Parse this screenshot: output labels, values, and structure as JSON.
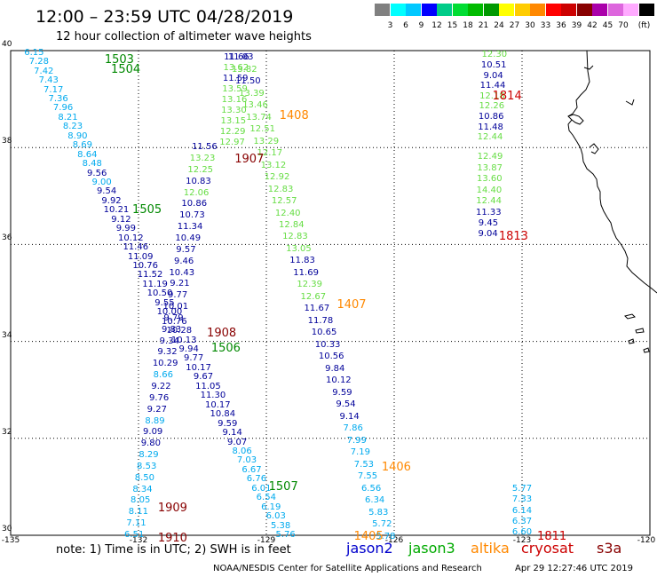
{
  "header": {
    "title": "12:00 – 23:59 UTC 04/28/2019",
    "subtitle": "12 hour collection of altimeter wave heights"
  },
  "colorbar": {
    "colors": [
      "#808080",
      "#00ffff",
      "#00c8ff",
      "#0000ff",
      "#00cc88",
      "#00dd33",
      "#00bb00",
      "#009900",
      "#ffff00",
      "#ffcc00",
      "#ff8800",
      "#ff0000",
      "#cc0000",
      "#880000",
      "#aa00aa",
      "#dd66dd",
      "#ffaaff",
      "#000000"
    ],
    "ticks": [
      "3",
      "6",
      "9",
      "12",
      "15",
      "18",
      "21",
      "24",
      "27",
      "30",
      "33",
      "36",
      "39",
      "42",
      "45",
      "70",
      "(ft)"
    ]
  },
  "axes": {
    "lat_labels": [
      "40",
      "38",
      "36",
      "34",
      "32",
      "30"
    ],
    "lon_labels": [
      "-135",
      "-132",
      "-129",
      "-126",
      "-123",
      "-120"
    ]
  },
  "track_colors": {
    "jason2": "#000099",
    "jason3": "#008800",
    "altika": "#ff8800",
    "cryosat": "#cc0000",
    "s3a": "#880000"
  },
  "track_labels": [
    {
      "text": "1503",
      "color": "#008800",
      "lon": -132.45,
      "lat": 39.8
    },
    {
      "text": "1504",
      "color": "#008800",
      "lon": -132.3,
      "lat": 39.6
    },
    {
      "text": "1505",
      "color": "#008800",
      "lon": -131.8,
      "lat": 36.7
    },
    {
      "text": "1506",
      "color": "#008800",
      "lon": -129.95,
      "lat": 33.85
    },
    {
      "text": "1507",
      "color": "#008800",
      "lon": -128.6,
      "lat": 30.98
    },
    {
      "text": "1408",
      "color": "#ff8800",
      "lon": -128.35,
      "lat": 38.65
    },
    {
      "text": "1407",
      "color": "#ff8800",
      "lon": -127.0,
      "lat": 34.75
    },
    {
      "text": "1406",
      "color": "#ff8800",
      "lon": -125.95,
      "lat": 31.4
    },
    {
      "text": "1405",
      "color": "#ff8800",
      "lon": -126.6,
      "lat": 29.97
    },
    {
      "text": "1907",
      "color": "#880000",
      "lon": -129.4,
      "lat": 37.74
    },
    {
      "text": "1908",
      "color": "#880000",
      "lon": -130.05,
      "lat": 34.15
    },
    {
      "text": "1909",
      "color": "#880000",
      "lon": -131.2,
      "lat": 30.55
    },
    {
      "text": "1910",
      "color": "#880000",
      "lon": -131.2,
      "lat": 29.93
    },
    {
      "text": "1814",
      "color": "#cc0000",
      "lon": -123.35,
      "lat": 39.05
    },
    {
      "text": "1813",
      "color": "#cc0000",
      "lon": -123.2,
      "lat": 36.15
    },
    {
      "text": "1811",
      "color": "#cc0000",
      "lon": -122.3,
      "lat": 29.97
    }
  ],
  "tracks": [
    {
      "id": "track-1503-1505-1507",
      "start": [
        -134.45,
        39.95
      ],
      "end": [
        -128.55,
        30.0
      ],
      "values": [
        {
          "v": "6.15",
          "c": "#00aaee"
        },
        {
          "v": "7.28",
          "c": "#00aaee"
        },
        {
          "v": "7.42",
          "c": "#00aaee"
        },
        {
          "v": "7.43",
          "c": "#00aaee"
        },
        {
          "v": "7.17",
          "c": "#00aaee"
        },
        {
          "v": "7.36",
          "c": "#00aaee"
        },
        {
          "v": "7.96",
          "c": "#00aaee"
        },
        {
          "v": "8.21",
          "c": "#00aaee"
        },
        {
          "v": "8.23",
          "c": "#00aaee"
        },
        {
          "v": "8.90",
          "c": "#00aaee"
        },
        {
          "v": "8.69",
          "c": "#00aaee"
        },
        {
          "v": "8.64",
          "c": "#00aaee"
        },
        {
          "v": "8.48",
          "c": "#00aaee"
        },
        {
          "v": "9.56",
          "c": "#000099"
        },
        {
          "v": "9.00",
          "c": "#00aaee"
        },
        {
          "v": "9.54",
          "c": "#000099"
        },
        {
          "v": "9.92",
          "c": "#000099"
        },
        {
          "v": "10.21",
          "c": "#000099"
        },
        {
          "v": "9.12",
          "c": "#000099"
        },
        {
          "v": "9.99",
          "c": "#000099"
        },
        {
          "v": "10.12",
          "c": "#000099"
        },
        {
          "v": "11.46",
          "c": "#000099"
        },
        {
          "v": "11.09",
          "c": "#000099"
        },
        {
          "v": "10.76",
          "c": "#000099"
        },
        {
          "v": "11.52",
          "c": "#000099"
        },
        {
          "v": "11.19",
          "c": "#000099"
        },
        {
          "v": "10.50",
          "c": "#000099"
        },
        {
          "v": "9.55",
          "c": "#000099"
        },
        {
          "v": "10.00",
          "c": "#000099"
        },
        {
          "v": "10.76",
          "c": "#000099"
        },
        {
          "v": "10.28",
          "c": "#000099"
        },
        {
          "v": "10.13",
          "c": "#000099"
        },
        {
          "v": "9.94",
          "c": "#000099"
        },
        {
          "v": "9.77",
          "c": "#000099"
        },
        {
          "v": "10.17",
          "c": "#000099"
        },
        {
          "v": "9.67",
          "c": "#000099"
        },
        {
          "v": "11.05",
          "c": "#000099"
        },
        {
          "v": "11.30",
          "c": "#000099"
        },
        {
          "v": "10.17",
          "c": "#000099"
        },
        {
          "v": "10.84",
          "c": "#000099"
        },
        {
          "v": "9.59",
          "c": "#000099"
        },
        {
          "v": "9.14",
          "c": "#000099"
        },
        {
          "v": "9.07",
          "c": "#000099"
        },
        {
          "v": "8.06",
          "c": "#00aaee"
        },
        {
          "v": "7.03",
          "c": "#00aaee"
        },
        {
          "v": "6.67",
          "c": "#00aaee"
        },
        {
          "v": "6.76",
          "c": "#00aaee"
        },
        {
          "v": "6.01",
          "c": "#00aaee"
        },
        {
          "v": "6.54",
          "c": "#00aaee"
        },
        {
          "v": "6.19",
          "c": "#00aaee"
        },
        {
          "v": "6.03",
          "c": "#00aaee"
        },
        {
          "v": "5.38",
          "c": "#00aaee"
        },
        {
          "v": "5.76",
          "c": "#00aaee"
        }
      ]
    },
    {
      "id": "track-1904-1910",
      "start": [
        -130.45,
        38.0
      ],
      "end": [
        -132.1,
        30.0
      ],
      "values": [
        {
          "v": "11.56",
          "c": "#000099"
        },
        {
          "v": "13.23",
          "c": "#66dd44"
        },
        {
          "v": "12.25",
          "c": "#66dd44"
        },
        {
          "v": "10.83",
          "c": "#000099"
        },
        {
          "v": "12.06",
          "c": "#66dd44"
        },
        {
          "v": "10.86",
          "c": "#000099"
        },
        {
          "v": "10.73",
          "c": "#000099"
        },
        {
          "v": "11.34",
          "c": "#000099"
        },
        {
          "v": "10.49",
          "c": "#000099"
        },
        {
          "v": "9.57",
          "c": "#000099"
        },
        {
          "v": "9.46",
          "c": "#000099"
        },
        {
          "v": "10.43",
          "c": "#000099"
        },
        {
          "v": "9.21",
          "c": "#000099"
        },
        {
          "v": "9.77",
          "c": "#000099"
        },
        {
          "v": "10.01",
          "c": "#000099"
        },
        {
          "v": "9.79",
          "c": "#000099"
        },
        {
          "v": "9.83",
          "c": "#000099"
        },
        {
          "v": "9.34",
          "c": "#000099"
        },
        {
          "v": "9.32",
          "c": "#000099"
        },
        {
          "v": "10.29",
          "c": "#000099"
        },
        {
          "v": "8.66",
          "c": "#00aaee"
        },
        {
          "v": "9.22",
          "c": "#000099"
        },
        {
          "v": "9.76",
          "c": "#000099"
        },
        {
          "v": "9.27",
          "c": "#000099"
        },
        {
          "v": "8.89",
          "c": "#00aaee"
        },
        {
          "v": "9.09",
          "c": "#000099"
        },
        {
          "v": "9.80",
          "c": "#000099"
        },
        {
          "v": "8.29",
          "c": "#00aaee"
        },
        {
          "v": "8.53",
          "c": "#00aaee"
        },
        {
          "v": "8.50",
          "c": "#00aaee"
        },
        {
          "v": "8.34",
          "c": "#00aaee"
        },
        {
          "v": "8.05",
          "c": "#00aaee"
        },
        {
          "v": "8.11",
          "c": "#00aaee"
        },
        {
          "v": "7.11",
          "c": "#00aaee"
        },
        {
          "v": "6.51",
          "c": "#00aaee"
        }
      ]
    },
    {
      "id": "track-1408-1405",
      "start": [
        -129.6,
        39.85
      ],
      "end": [
        -126.2,
        29.97
      ],
      "values": [
        {
          "v": "11.03",
          "c": "#000099"
        },
        {
          "v": "13.82",
          "c": "#66dd44"
        },
        {
          "v": "11.50",
          "c": "#000099"
        },
        {
          "v": "13.39",
          "c": "#66dd44"
        },
        {
          "v": "13.46",
          "c": "#66dd44"
        },
        {
          "v": "13.74",
          "c": "#66dd44"
        },
        {
          "v": "12.51",
          "c": "#66dd44"
        },
        {
          "v": "13.29",
          "c": "#66dd44"
        },
        {
          "v": "12.17",
          "c": "#66dd44"
        },
        {
          "v": "13.12",
          "c": "#66dd44"
        },
        {
          "v": "12.92",
          "c": "#66dd44"
        },
        {
          "v": "12.83",
          "c": "#66dd44"
        },
        {
          "v": "12.57",
          "c": "#66dd44"
        },
        {
          "v": "12.40",
          "c": "#66dd44"
        },
        {
          "v": "12.84",
          "c": "#66dd44"
        },
        {
          "v": "12.83",
          "c": "#66dd44"
        },
        {
          "v": "13.05",
          "c": "#66dd44"
        },
        {
          "v": "11.83",
          "c": "#000099"
        },
        {
          "v": "11.69",
          "c": "#000099"
        },
        {
          "v": "12.39",
          "c": "#66dd44"
        },
        {
          "v": "12.67",
          "c": "#66dd44"
        },
        {
          "v": "11.67",
          "c": "#000099"
        },
        {
          "v": "11.78",
          "c": "#000099"
        },
        {
          "v": "10.65",
          "c": "#000099"
        },
        {
          "v": "10.33",
          "c": "#000099"
        },
        {
          "v": "10.56",
          "c": "#000099"
        },
        {
          "v": "9.84",
          "c": "#000099"
        },
        {
          "v": "10.12",
          "c": "#000099"
        },
        {
          "v": "9.59",
          "c": "#000099"
        },
        {
          "v": "9.54",
          "c": "#000099"
        },
        {
          "v": "9.14",
          "c": "#000099"
        },
        {
          "v": "7.86",
          "c": "#00aaee"
        },
        {
          "v": "7.99",
          "c": "#00aaee"
        },
        {
          "v": "7.19",
          "c": "#00aaee"
        },
        {
          "v": "7.53",
          "c": "#00aaee"
        },
        {
          "v": "7.55",
          "c": "#00aaee"
        },
        {
          "v": "6.56",
          "c": "#00aaee"
        },
        {
          "v": "6.34",
          "c": "#00aaee"
        },
        {
          "v": "5.83",
          "c": "#00aaee"
        },
        {
          "v": "5.72",
          "c": "#00aaee"
        },
        {
          "v": "5.78",
          "c": "#00aaee"
        }
      ]
    },
    {
      "id": "track-1907-upper",
      "start": [
        -129.7,
        39.85
      ],
      "end": [
        -129.8,
        38.1
      ],
      "values": [
        {
          "v": "11.66",
          "c": "#000099"
        },
        {
          "v": "13.62",
          "c": "#66dd44"
        },
        {
          "v": "11.59",
          "c": "#000099"
        },
        {
          "v": "13.59",
          "c": "#66dd44"
        },
        {
          "v": "13.16",
          "c": "#66dd44"
        },
        {
          "v": "13.30",
          "c": "#66dd44"
        },
        {
          "v": "13.15",
          "c": "#66dd44"
        },
        {
          "v": "12.29",
          "c": "#66dd44"
        },
        {
          "v": "12.97",
          "c": "#66dd44"
        }
      ]
    },
    {
      "id": "track-1814",
      "start": [
        -123.65,
        39.9
      ],
      "end": [
        -123.75,
        38.2
      ],
      "values": [
        {
          "v": "12.30",
          "c": "#66dd44"
        },
        {
          "v": "10.51",
          "c": "#000099"
        },
        {
          "v": "9.04",
          "c": "#000099"
        },
        {
          "v": "11.44",
          "c": "#000099"
        },
        {
          "v": "12.18",
          "c": "#66dd44"
        },
        {
          "v": "12.26",
          "c": "#66dd44"
        },
        {
          "v": "10.86",
          "c": "#000099"
        },
        {
          "v": "11.48",
          "c": "#000099"
        },
        {
          "v": "12.44",
          "c": "#66dd44"
        }
      ]
    },
    {
      "id": "track-1813",
      "start": [
        -123.75,
        37.8
      ],
      "end": [
        -123.8,
        36.2
      ],
      "values": [
        {
          "v": "12.49",
          "c": "#66dd44"
        },
        {
          "v": "13.87",
          "c": "#66dd44"
        },
        {
          "v": "13.60",
          "c": "#66dd44"
        },
        {
          "v": "14.40",
          "c": "#66dd44"
        },
        {
          "v": "12.44",
          "c": "#66dd44"
        },
        {
          "v": "11.33",
          "c": "#000099"
        },
        {
          "v": "9.45",
          "c": "#000099"
        },
        {
          "v": "9.04",
          "c": "#000099"
        }
      ]
    },
    {
      "id": "track-1811",
      "start": [
        -123.0,
        30.95
      ],
      "end": [
        -123.0,
        30.05
      ],
      "values": [
        {
          "v": "5.77",
          "c": "#00aaee"
        },
        {
          "v": "7.33",
          "c": "#00aaee"
        },
        {
          "v": "6.14",
          "c": "#00aaee"
        },
        {
          "v": "6.37",
          "c": "#00aaee"
        },
        {
          "v": "6.60",
          "c": "#00aaee"
        }
      ]
    }
  ],
  "footer": {
    "note": "note:  1) Time is in UTC;  2) SWH is in feet",
    "legend": [
      {
        "name": "jason2",
        "color": "#0000cc"
      },
      {
        "name": "jason3",
        "color": "#00aa00"
      },
      {
        "name": "altika",
        "color": "#ff8800"
      },
      {
        "name": "cryosat",
        "color": "#cc0000"
      },
      {
        "name": "s3a",
        "color": "#880000"
      }
    ],
    "credit": "NOAA/NESDIS Center for Satellite Applications and Research",
    "timestamp": "Apr 29 12:27:46 UTC 2019"
  }
}
